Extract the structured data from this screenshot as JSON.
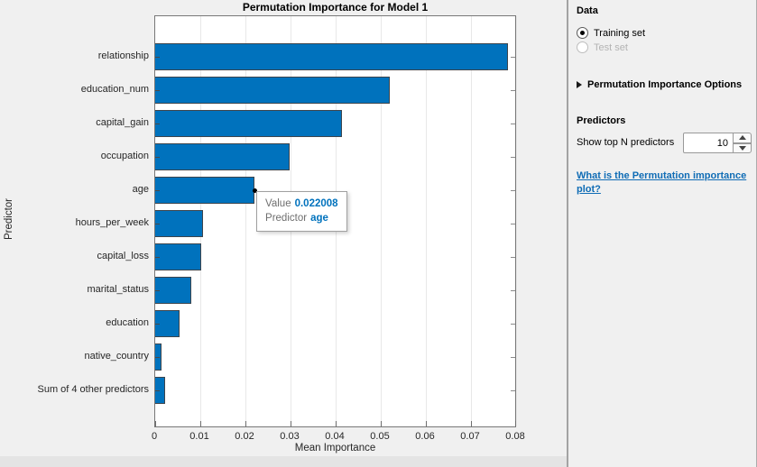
{
  "chart_data": {
    "type": "bar",
    "orientation": "horizontal",
    "title": "Permutation Importance for Model 1",
    "xlabel": "Mean Importance",
    "ylabel": "Predictor",
    "categories": [
      "relationship",
      "education_num",
      "capital_gain",
      "occupation",
      "age",
      "hours_per_week",
      "capital_loss",
      "marital_status",
      "education",
      "native_country",
      "Sum of 4 other predictors"
    ],
    "values": [
      0.0781,
      0.052,
      0.0414,
      0.0297,
      0.022008,
      0.0107,
      0.0101,
      0.008,
      0.0054,
      0.0014,
      0.0021
    ],
    "xlim": [
      0,
      0.08
    ],
    "xticks": [
      0,
      0.01,
      0.02,
      0.03,
      0.04,
      0.05,
      0.06,
      0.07,
      0.08
    ],
    "xtick_labels": [
      "0",
      "0.01",
      "0.02",
      "0.03",
      "0.04",
      "0.05",
      "0.06",
      "0.07",
      "0.08"
    ],
    "grid": "vertical",
    "legend": "none",
    "bar_color": "#0072BD",
    "datatip": {
      "value_label": "Value",
      "value": "0.022008",
      "predictor_label": "Predictor",
      "predictor": "age"
    }
  },
  "sidebar": {
    "data_section": {
      "title": "Data",
      "options": [
        {
          "label": "Training set",
          "selected": true,
          "enabled": true
        },
        {
          "label": "Test set",
          "selected": false,
          "enabled": false
        }
      ]
    },
    "options_toggle": {
      "label": "Permutation Importance Options",
      "collapsed": true
    },
    "predictors_section": {
      "title": "Predictors",
      "spinner_label": "Show top N predictors",
      "spinner_value": "10"
    },
    "help_link": "What is the Permutation importance plot?"
  },
  "colors": {
    "accent_blue": "#0072BD",
    "link_blue": "#0F6CB5",
    "figure_background": "#F0F0F0",
    "plot_background": "#FFFFFF",
    "gridline": "#E8E8E8",
    "axis_line": "#777777",
    "disabled_text": "#B3B3B3",
    "datatip_label": "#6E6E6E"
  }
}
